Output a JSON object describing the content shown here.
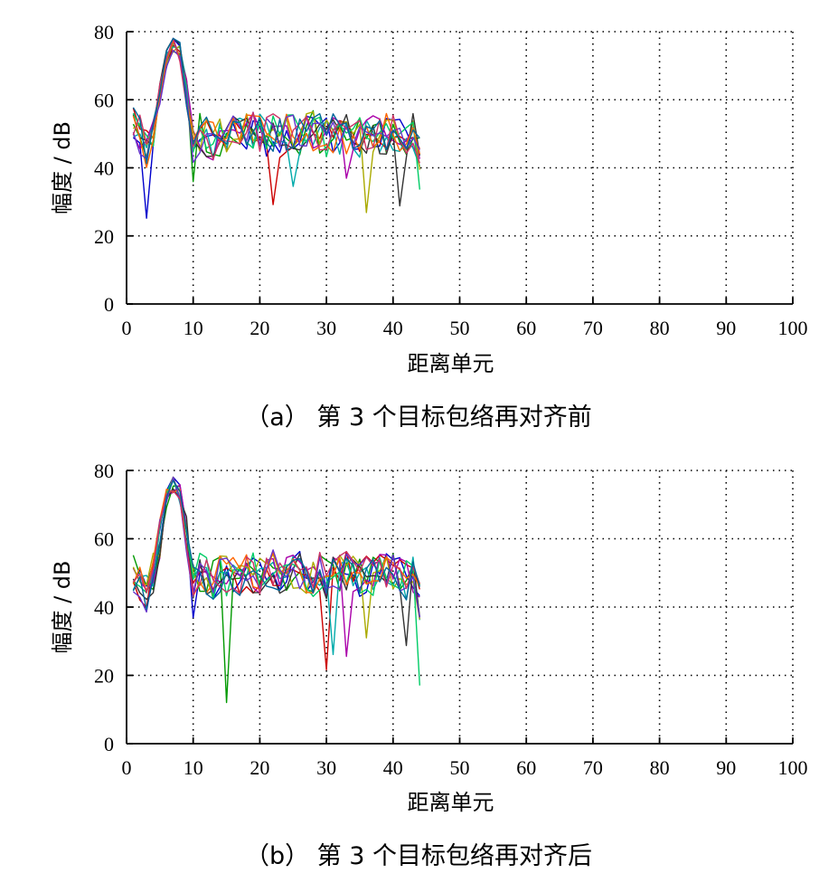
{
  "chart_data": [
    {
      "type": "line",
      "caption": "（a） 第 3 个目标包络再对齐前",
      "xlabel": "距离单元",
      "ylabel": "幅度 / dB",
      "xlim": [
        0,
        100
      ],
      "ylim": [
        0,
        80
      ],
      "xticks": [
        0,
        10,
        20,
        30,
        40,
        50,
        60,
        70,
        80,
        90,
        100
      ],
      "yticks": [
        0,
        20,
        40,
        60,
        80
      ],
      "grid": true,
      "grid_style": "dotted",
      "series_count": 12,
      "seed": 11,
      "x": [
        1,
        2,
        3,
        4,
        5,
        6,
        7,
        8,
        9,
        10,
        11,
        12,
        13,
        14,
        15,
        16,
        17,
        18,
        19,
        20,
        21,
        22,
        23,
        24,
        25,
        26,
        27,
        28,
        29,
        30,
        31,
        32,
        33,
        34,
        35,
        36,
        37,
        38,
        39,
        40,
        41,
        42,
        43,
        44
      ],
      "typical_envelope": [
        52,
        50,
        46,
        52,
        60,
        72,
        77,
        74,
        64,
        47,
        50,
        49,
        48,
        49,
        50,
        51,
        49,
        50,
        51,
        50,
        49,
        50,
        49,
        50,
        51,
        49,
        50,
        51,
        50,
        49,
        50,
        49,
        50,
        51,
        49,
        48,
        50,
        49,
        50,
        51,
        49,
        48,
        50,
        44
      ],
      "dips": [
        {
          "x": 3,
          "value": 24
        },
        {
          "x": 10,
          "value": 35
        },
        {
          "x": 22,
          "value": 28
        },
        {
          "x": 25,
          "value": 34
        },
        {
          "x": 33,
          "value": 36
        },
        {
          "x": 36,
          "value": 25
        },
        {
          "x": 41,
          "value": 28
        },
        {
          "x": 44,
          "value": 32
        }
      ],
      "peak": {
        "x": 7,
        "max": 78
      }
    },
    {
      "type": "line",
      "caption": "（b） 第 3 个目标包络再对齐后",
      "xlabel": "距离单元",
      "ylabel": "幅度 / dB",
      "xlim": [
        0,
        100
      ],
      "ylim": [
        0,
        80
      ],
      "xticks": [
        0,
        10,
        20,
        30,
        40,
        50,
        60,
        70,
        80,
        90,
        100
      ],
      "yticks": [
        0,
        20,
        40,
        60,
        80
      ],
      "grid": true,
      "grid_style": "dotted",
      "series_count": 12,
      "seed": 29,
      "x": [
        1,
        2,
        3,
        4,
        5,
        6,
        7,
        8,
        9,
        10,
        11,
        12,
        13,
        14,
        15,
        16,
        17,
        18,
        19,
        20,
        21,
        22,
        23,
        24,
        25,
        26,
        27,
        28,
        29,
        30,
        31,
        32,
        33,
        34,
        35,
        36,
        37,
        38,
        39,
        40,
        41,
        42,
        43,
        44
      ],
      "typical_envelope": [
        50,
        46,
        44,
        50,
        60,
        72,
        76,
        73,
        62,
        47,
        50,
        49,
        48,
        50,
        49,
        50,
        49,
        51,
        50,
        49,
        50,
        51,
        50,
        49,
        50,
        51,
        50,
        49,
        50,
        48,
        49,
        50,
        51,
        50,
        49,
        50,
        49,
        50,
        51,
        50,
        49,
        48,
        50,
        42
      ],
      "dips": [
        {
          "x": 10,
          "value": 35
        },
        {
          "x": 15,
          "value": 11
        },
        {
          "x": 30,
          "value": 20
        },
        {
          "x": 31,
          "value": 25
        },
        {
          "x": 33,
          "value": 24
        },
        {
          "x": 36,
          "value": 30
        },
        {
          "x": 42,
          "value": 28
        },
        {
          "x": 44,
          "value": 16
        }
      ],
      "peak": {
        "x": 7,
        "max": 78
      }
    }
  ],
  "colors": {
    "series": [
      "#0000cc",
      "#009900",
      "#cc0000",
      "#00aaaa",
      "#aa00aa",
      "#aaaa00",
      "#333333",
      "#00cc66",
      "#ff6600",
      "#6633cc",
      "#cc3366",
      "#006699"
    ],
    "grid": "#000000",
    "axis": "#000000"
  }
}
